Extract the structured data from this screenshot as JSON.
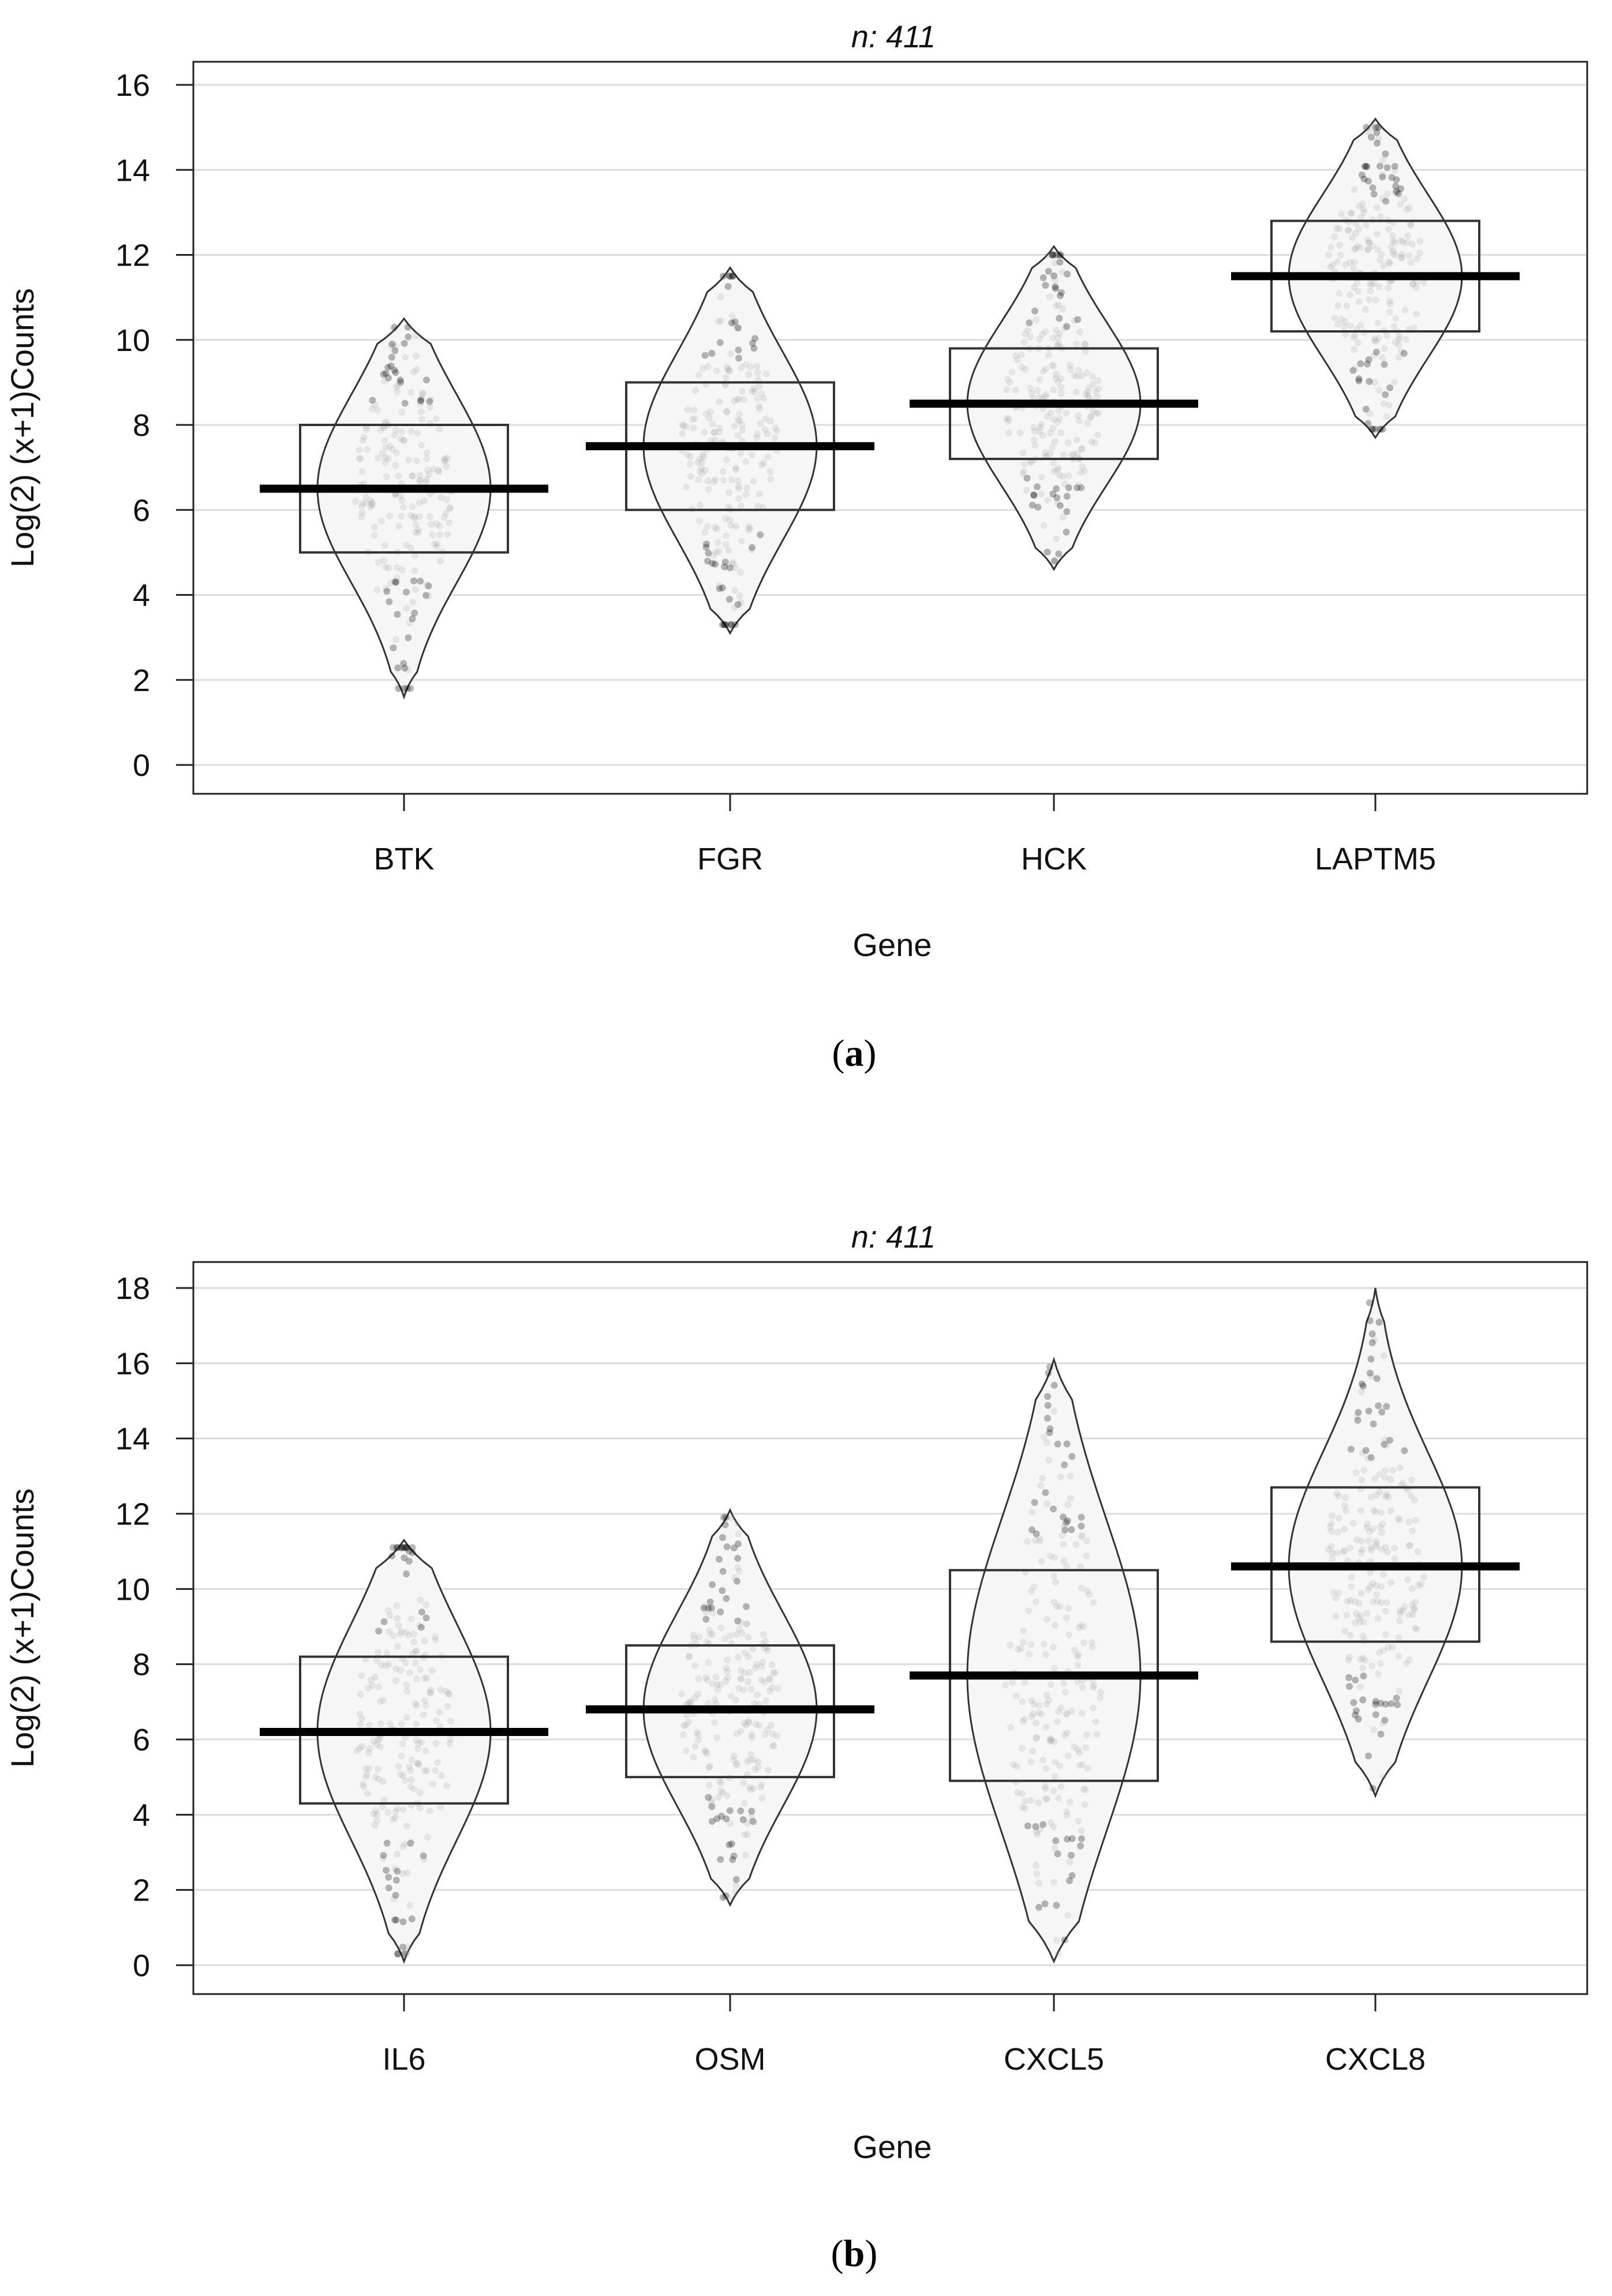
{
  "chart_data": [
    {
      "type": "pirate",
      "panel_label_parts": [
        "(",
        "a",
        ")"
      ],
      "title": "n: 411",
      "xlabel": "Gene",
      "ylabel": "Log(2) (x+1)Counts",
      "ylim": [
        0,
        16
      ],
      "yticks": [
        0,
        2,
        4,
        6,
        8,
        10,
        12,
        14,
        16
      ],
      "categories": [
        "BTK",
        "FGR",
        "HCK",
        "LAPTM5"
      ],
      "series": [
        {
          "name": "BTK",
          "median": 6.5,
          "q1": 5.0,
          "q3": 8.0,
          "min": 1.6,
          "max": 10.5
        },
        {
          "name": "FGR",
          "median": 7.5,
          "q1": 6.0,
          "q3": 9.0,
          "min": 3.1,
          "max": 11.7
        },
        {
          "name": "HCK",
          "median": 8.5,
          "q1": 7.2,
          "q3": 9.8,
          "min": 4.6,
          "max": 12.2
        },
        {
          "name": "LAPTM5",
          "median": 11.5,
          "q1": 10.2,
          "q3": 12.8,
          "min": 7.7,
          "max": 15.2
        }
      ],
      "grid": true
    },
    {
      "type": "pirate",
      "panel_label_parts": [
        "(",
        "b",
        ")"
      ],
      "title": "n: 411",
      "xlabel": "Gene",
      "ylabel": "Log(2) (x+1)Counts",
      "ylim": [
        0,
        18
      ],
      "yticks": [
        0,
        2,
        4,
        6,
        8,
        10,
        12,
        14,
        16,
        18
      ],
      "categories": [
        "IL6",
        "OSM",
        "CXCL5",
        "CXCL8"
      ],
      "series": [
        {
          "name": "IL6",
          "median": 6.2,
          "q1": 4.3,
          "q3": 8.2,
          "min": 0.1,
          "max": 11.3
        },
        {
          "name": "OSM",
          "median": 6.8,
          "q1": 5.0,
          "q3": 8.5,
          "min": 1.6,
          "max": 12.1
        },
        {
          "name": "CXCL5",
          "median": 7.7,
          "q1": 4.9,
          "q3": 10.5,
          "min": 0.1,
          "max": 16.1
        },
        {
          "name": "CXCL8",
          "median": 10.6,
          "q1": 8.6,
          "q3": 12.7,
          "min": 4.5,
          "max": 18.0
        }
      ],
      "grid": true
    }
  ]
}
